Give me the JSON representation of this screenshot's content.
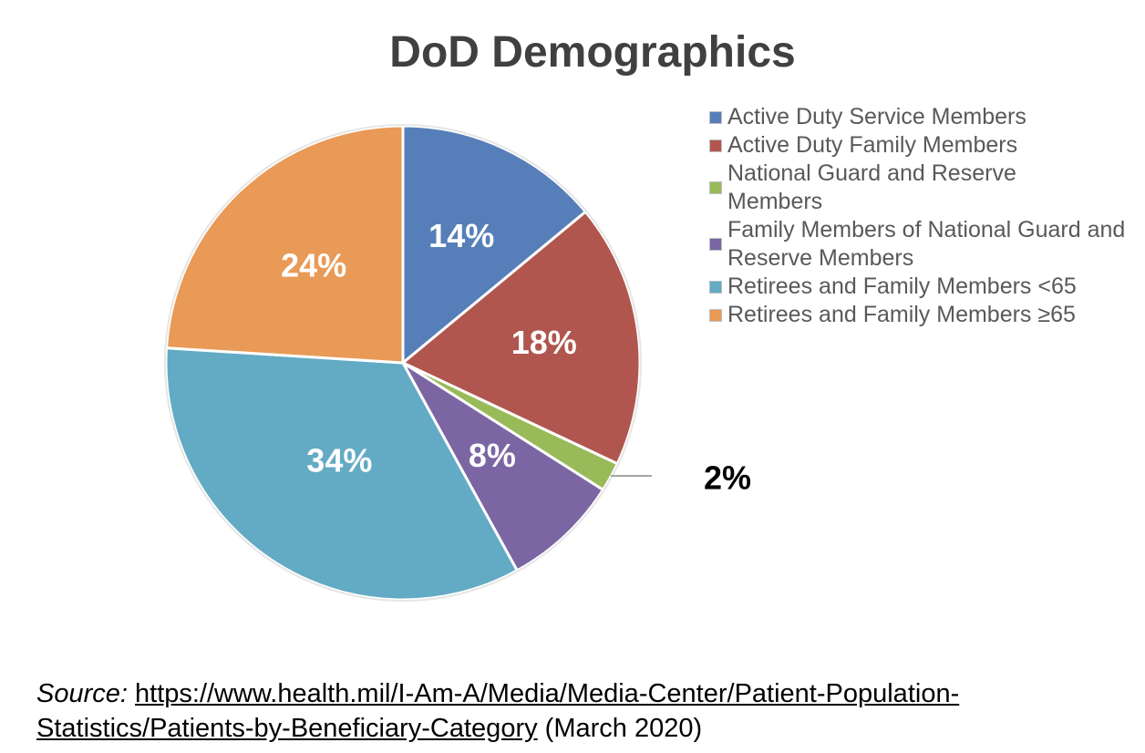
{
  "chart_data": {
    "type": "pie",
    "title": "DoD Demographics",
    "legend_position": "right",
    "slices": [
      {
        "label": "Active Duty Service Members",
        "value": 14,
        "data_label": "14%",
        "color": "#567FB9"
      },
      {
        "label": "Active Duty Family Members",
        "value": 18,
        "data_label": "18%",
        "color": "#B0564E"
      },
      {
        "label": "National Guard and Reserve Members",
        "value": 2,
        "data_label": "2%",
        "color": "#98BA58"
      },
      {
        "label": "Family Members of National Guard and Reserve Members",
        "value": 8,
        "data_label": "8%",
        "color": "#7B66A3"
      },
      {
        "label": "Retirees and Family Members <65",
        "value": 34,
        "data_label": "34%",
        "color": "#63AAC4"
      },
      {
        "label": "Retirees and Family Members ≥65",
        "value": 24,
        "data_label": "24%",
        "color": "#E89A56"
      }
    ]
  },
  "source": {
    "prefix": "Source:",
    "link": "https://www.health.mil/I-Am-A/Media/Media-Center/Patient-Population-Statistics/Patients-by-Beneficiary-Category",
    "suffix": "(March 2020)"
  }
}
